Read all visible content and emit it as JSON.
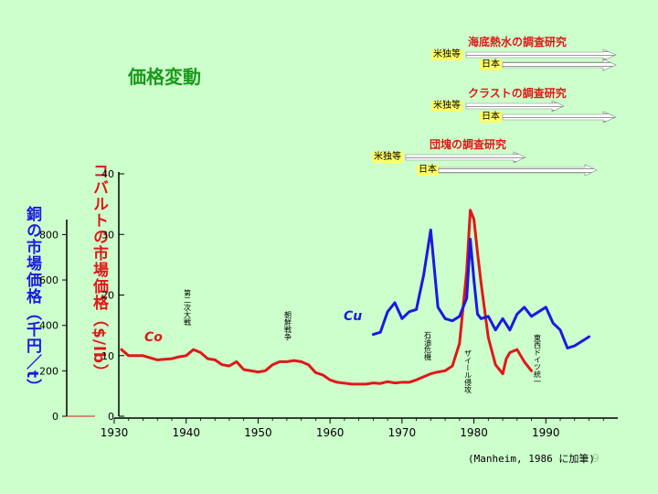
{
  "slide": {
    "title": "価格変動",
    "page_number": "9",
    "source": "(Manheim, 1986 に加筆)"
  },
  "timeline": [
    {
      "title": "海底熱水の調査研究",
      "us": "米独等",
      "jp": "日本"
    },
    {
      "title": "クラストの調査研究",
      "us": "米独等",
      "jp": "日本"
    },
    {
      "title": "団塊の調査研究",
      "us": "米独等",
      "jp": "日本"
    }
  ],
  "chart_data": {
    "type": "line",
    "xlabel": "",
    "x_ticks": [
      1930,
      1940,
      1950,
      1960,
      1970,
      1980,
      1990
    ],
    "xlim": [
      1930,
      2000
    ],
    "cu_axis": {
      "label": "銅の市場価格（千円／t）",
      "ticks": [
        0,
        200,
        400,
        600,
        800
      ],
      "ylim": [
        0,
        850
      ]
    },
    "co_axis": {
      "label": "コバルトの市場価格（$/lb）",
      "ticks": [
        0,
        10,
        20,
        30,
        40
      ],
      "ylim": [
        0,
        40
      ]
    },
    "series": [
      {
        "name": "Co",
        "axis": "co",
        "color": "#e01818",
        "points": [
          [
            1931,
            11
          ],
          [
            1932,
            10
          ],
          [
            1934,
            10
          ],
          [
            1936,
            9.3
          ],
          [
            1938,
            9.5
          ],
          [
            1939,
            9.8
          ],
          [
            1940,
            10
          ],
          [
            1941,
            11
          ],
          [
            1942,
            10.5
          ],
          [
            1943,
            9.5
          ],
          [
            1944,
            9.3
          ],
          [
            1945,
            8.5
          ],
          [
            1946,
            8.3
          ],
          [
            1947,
            9
          ],
          [
            1948,
            7.7
          ],
          [
            1950,
            7.3
          ],
          [
            1951,
            7.5
          ],
          [
            1952,
            8.5
          ],
          [
            1953,
            9
          ],
          [
            1954,
            9
          ],
          [
            1955,
            9.2
          ],
          [
            1956,
            9
          ],
          [
            1957,
            8.5
          ],
          [
            1958,
            7.2
          ],
          [
            1959,
            6.8
          ],
          [
            1960,
            6
          ],
          [
            1961,
            5.6
          ],
          [
            1963,
            5.3
          ],
          [
            1964,
            5.3
          ],
          [
            1965,
            5.3
          ],
          [
            1966,
            5.5
          ],
          [
            1967,
            5.4
          ],
          [
            1968,
            5.7
          ],
          [
            1969,
            5.5
          ],
          [
            1970,
            5.6
          ],
          [
            1971,
            5.6
          ],
          [
            1972,
            6
          ],
          [
            1973,
            6.5
          ],
          [
            1974,
            7
          ],
          [
            1975,
            7.3
          ],
          [
            1976,
            7.5
          ],
          [
            1977,
            8.3
          ],
          [
            1978,
            12
          ],
          [
            1979,
            24
          ],
          [
            1979.5,
            34
          ],
          [
            1980,
            32.5
          ],
          [
            1980.5,
            27
          ],
          [
            1981,
            22
          ],
          [
            1982,
            13
          ],
          [
            1983,
            8.5
          ],
          [
            1984,
            7
          ],
          [
            1984.5,
            9.5
          ],
          [
            1985,
            10.5
          ],
          [
            1986,
            11
          ],
          [
            1987,
            9
          ],
          [
            1988,
            7.5
          ]
        ]
      },
      {
        "name": "Cu",
        "axis": "cu",
        "color": "#1a1ae0",
        "points": [
          [
            1966,
            360
          ],
          [
            1967,
            370
          ],
          [
            1968,
            460
          ],
          [
            1969,
            500
          ],
          [
            1970,
            430
          ],
          [
            1971,
            460
          ],
          [
            1972,
            470
          ],
          [
            1973,
            620
          ],
          [
            1974,
            820
          ],
          [
            1975,
            480
          ],
          [
            1976,
            430
          ],
          [
            1977,
            420
          ],
          [
            1978,
            440
          ],
          [
            1979,
            520
          ],
          [
            1979.5,
            780
          ],
          [
            1980,
            600
          ],
          [
            1980.5,
            450
          ],
          [
            1981,
            430
          ],
          [
            1982,
            440
          ],
          [
            1983,
            380
          ],
          [
            1984,
            430
          ],
          [
            1985,
            380
          ],
          [
            1986,
            450
          ],
          [
            1987,
            480
          ],
          [
            1988,
            440
          ],
          [
            1989,
            460
          ],
          [
            1990,
            480
          ],
          [
            1991,
            410
          ],
          [
            1992,
            380
          ],
          [
            1993,
            300
          ],
          [
            1994,
            310
          ],
          [
            1995,
            330
          ],
          [
            1996,
            350
          ]
        ]
      }
    ],
    "annotations": [
      {
        "text": "Co",
        "color": "#e01818"
      },
      {
        "text": "Cu",
        "color": "#1a1ae0"
      },
      {
        "text": "第二次大戦",
        "year": 1940.5
      },
      {
        "text": "朝鮮戦争",
        "year": 1954.5
      },
      {
        "text": "石油危機",
        "year": 1974.5
      },
      {
        "text": "ザイール侵攻",
        "year": 1980
      },
      {
        "text": "東西ドイツ統一",
        "year": 1989.5
      }
    ]
  }
}
